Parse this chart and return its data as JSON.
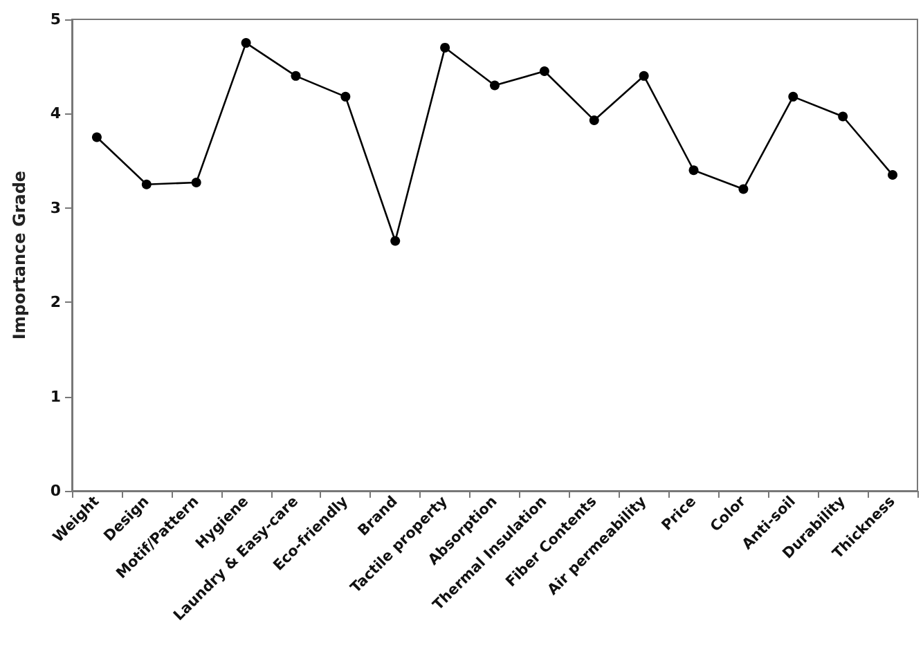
{
  "chart_data": {
    "type": "line",
    "ylabel": "Importance Grade",
    "categories": [
      "Weight",
      "Design",
      "Motif/Pattern",
      "Hygiene",
      "Laundry & Easy-care",
      "Eco-friendly",
      "Brand",
      "Tactile property",
      "Absorption",
      "Thermal Insulation",
      "Fiber Contents",
      "Air permeability",
      "Price",
      "Color",
      "Anti-soil",
      "Durability",
      "Thickness"
    ],
    "series": [
      {
        "color": "#000000",
        "values": [
          3.75,
          3.25,
          3.27,
          4.75,
          4.4,
          4.18,
          2.65,
          4.7,
          4.3,
          4.45,
          3.93,
          4.4,
          3.4,
          3.2,
          4.18,
          3.97,
          3.35
        ]
      }
    ],
    "ylim": [
      0,
      5
    ],
    "yticks": [
      0,
      1,
      2,
      3,
      4,
      5
    ],
    "grid": false,
    "marker": "circle",
    "line_style": "solid"
  }
}
